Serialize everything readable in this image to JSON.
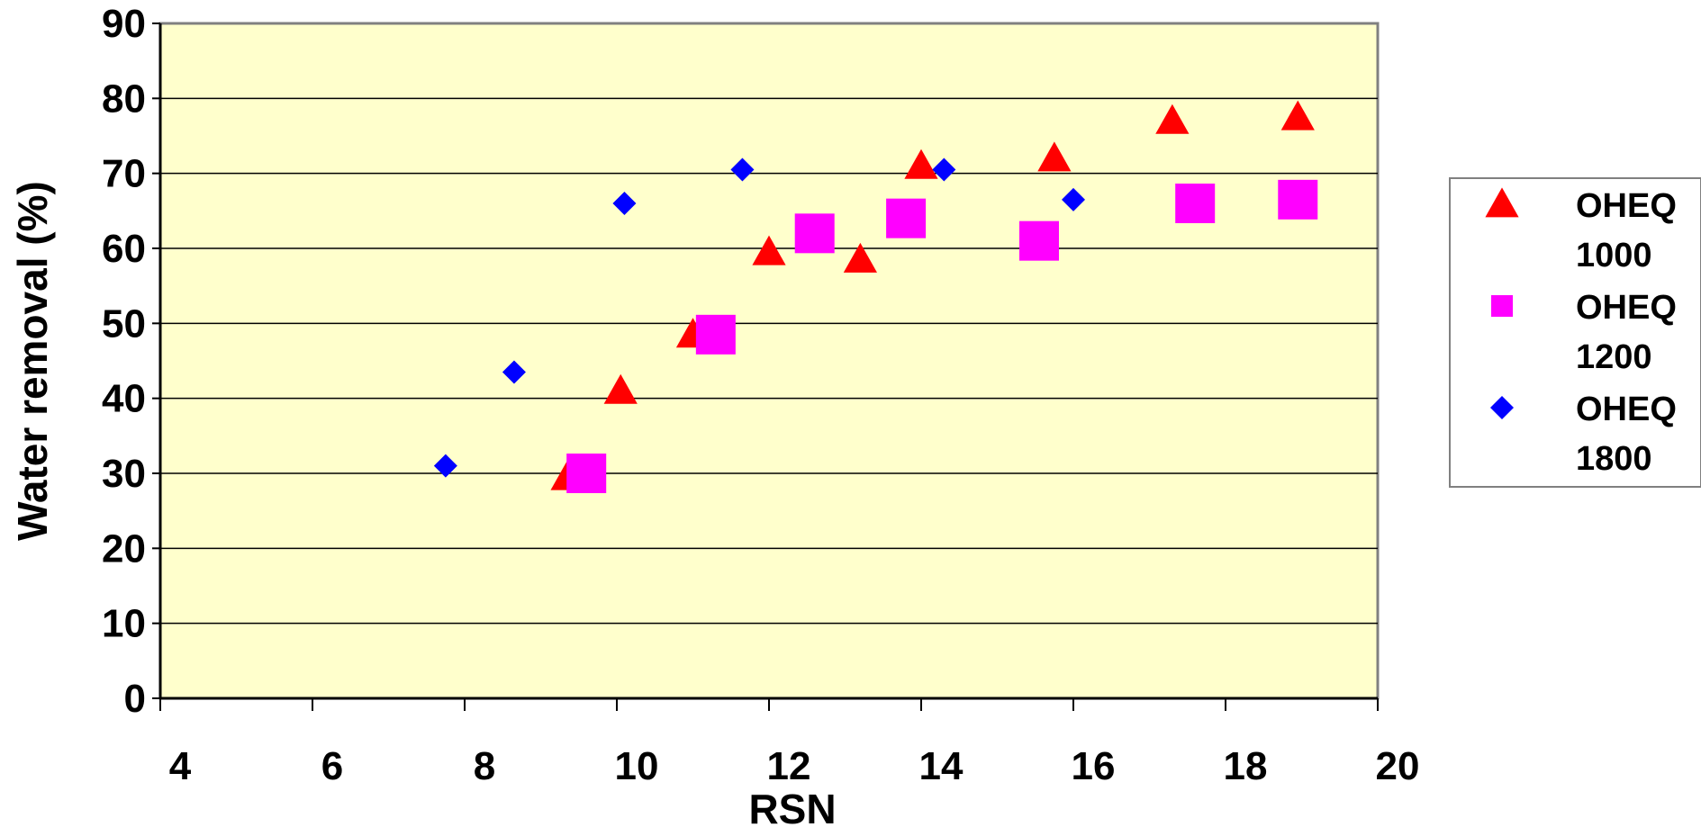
{
  "chart_data": {
    "type": "scatter",
    "xlabel": "RSN",
    "ylabel": "Water removal (%)",
    "xlim": [
      4,
      20
    ],
    "ylim": [
      0,
      90
    ],
    "x_ticks": [
      4,
      6,
      8,
      10,
      12,
      14,
      16,
      18,
      20
    ],
    "y_ticks": [
      0,
      10,
      20,
      30,
      40,
      50,
      60,
      70,
      80,
      90
    ],
    "grid": "horizontal",
    "plot_background": "#FFFFCC",
    "legend_position": "right",
    "series": [
      {
        "name_lines": [
          "OHEQ",
          "1000"
        ],
        "marker": "triangle",
        "color": "#FF0000",
        "points": [
          {
            "x": 9.35,
            "y": 29.5
          },
          {
            "x": 10.05,
            "y": 41.0
          },
          {
            "x": 11.0,
            "y": 48.5
          },
          {
            "x": 12.0,
            "y": 59.5
          },
          {
            "x": 13.2,
            "y": 58.5
          },
          {
            "x": 14.0,
            "y": 71.0
          },
          {
            "x": 15.75,
            "y": 72.0
          },
          {
            "x": 17.3,
            "y": 77.0
          },
          {
            "x": 18.95,
            "y": 77.5
          }
        ]
      },
      {
        "name_lines": [
          "OHEQ",
          "1200"
        ],
        "marker": "square",
        "color": "#FF00FF",
        "points": [
          {
            "x": 9.6,
            "y": 30.0
          },
          {
            "x": 11.3,
            "y": 48.5
          },
          {
            "x": 12.6,
            "y": 62.0
          },
          {
            "x": 13.8,
            "y": 64.0
          },
          {
            "x": 15.55,
            "y": 61.0
          },
          {
            "x": 17.6,
            "y": 66.0
          },
          {
            "x": 18.95,
            "y": 66.5
          }
        ]
      },
      {
        "name_lines": [
          "OHEQ",
          "1800"
        ],
        "marker": "diamond",
        "color": "#0000FF",
        "points": [
          {
            "x": 7.75,
            "y": 31.0
          },
          {
            "x": 8.65,
            "y": 43.5
          },
          {
            "x": 10.1,
            "y": 66.0
          },
          {
            "x": 11.65,
            "y": 70.5
          },
          {
            "x": 14.3,
            "y": 70.5
          },
          {
            "x": 16.0,
            "y": 66.5
          }
        ]
      }
    ]
  }
}
